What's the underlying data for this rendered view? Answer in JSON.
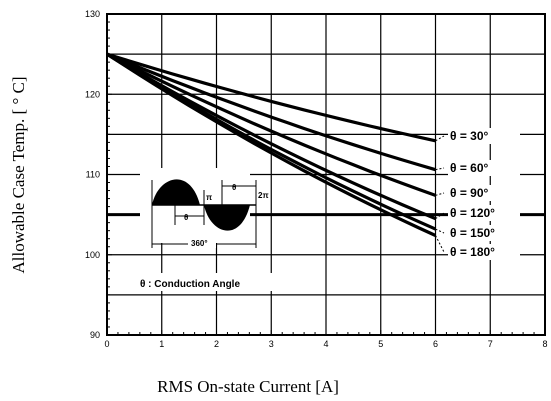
{
  "chart_data": {
    "type": "line",
    "xlabel": "RMS On-state Current [A]",
    "ylabel": "Allowable Case Temp. [ ° C]",
    "xlim": [
      0,
      8
    ],
    "ylim": [
      90,
      130
    ],
    "x_ticks": [
      "0",
      "1",
      "2",
      "3",
      "4",
      "5",
      "6",
      "7",
      "8"
    ],
    "y_ticks": [
      "90",
      "100",
      "110",
      "120",
      "130"
    ],
    "grid": true,
    "legend_placement": "right, at line ends",
    "series": [
      {
        "name": "θ = 30°",
        "x": [
          0,
          6
        ],
        "y": [
          125,
          114.2
        ]
      },
      {
        "name": "θ = 60°",
        "x": [
          0,
          6
        ],
        "y": [
          125,
          110.6
        ]
      },
      {
        "name": "θ = 90°",
        "x": [
          0,
          6
        ],
        "y": [
          125,
          107.4
        ]
      },
      {
        "name": "θ = 120°",
        "x": [
          0,
          6
        ],
        "y": [
          125,
          104.5
        ]
      },
      {
        "name": "θ = 150°",
        "x": [
          0,
          6
        ],
        "y": [
          125,
          103.2
        ]
      },
      {
        "name": "θ = 180°",
        "x": [
          0,
          6
        ],
        "y": [
          125,
          102.4
        ]
      }
    ],
    "annotations": {
      "conduction_angle_label": "θ : Conduction Angle",
      "period_label": "360°",
      "theta_label": "θ",
      "pi_label": "π",
      "two_pi_label": "2π"
    }
  }
}
